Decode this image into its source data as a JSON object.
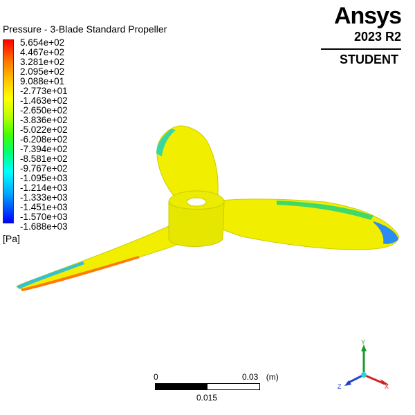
{
  "title": "Pressure - 3-Blade Standard Propeller",
  "legend": {
    "values": [
      "5.654e+02",
      "4.467e+02",
      "3.281e+02",
      "2.095e+02",
      "9.088e+01",
      "-2.773e+01",
      "-1.463e+02",
      "-2.650e+02",
      "-3.836e+02",
      "-5.022e+02",
      "-6.208e+02",
      "-7.394e+02",
      "-8.581e+02",
      "-9.767e+02",
      "-1.095e+03",
      "-1.214e+03",
      "-1.333e+03",
      "-1.451e+03",
      "-1.570e+03",
      "-1.688e+03"
    ],
    "units": "[Pa]",
    "colors": [
      "#ff0000",
      "#ff7a00",
      "#ffd200",
      "#ffff00",
      "#b9ff00",
      "#40ff00",
      "#00ff7a",
      "#00ffff",
      "#00a8ff",
      "#0000ff"
    ]
  },
  "brand": {
    "name": "Ansys",
    "version": "2023 R2",
    "edition": "STUDENT"
  },
  "scale": {
    "zero": "0",
    "max": "0.03",
    "unit": "(m)",
    "mid": "0.015"
  },
  "triad": {
    "x": "X",
    "y": "Y",
    "z": "Z",
    "x_color": "#d32020",
    "y_color": "#1a9a2a",
    "z_color": "#2040c8"
  },
  "model": {
    "icon": "propeller-model",
    "surface_color": "#f2ee00"
  }
}
